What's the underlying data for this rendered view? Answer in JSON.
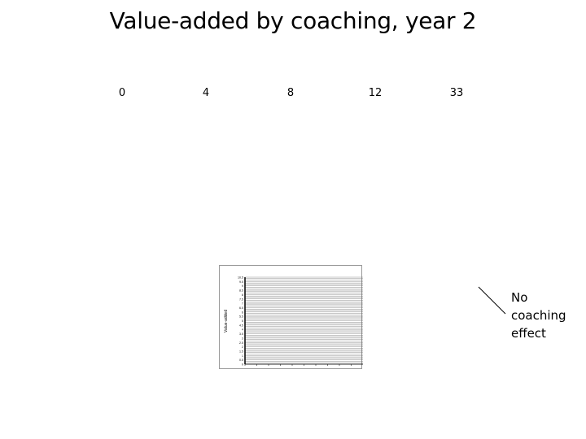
{
  "page": {
    "title": "Value-added by coaching, year 2"
  },
  "chart_data": [
    {
      "type": "bar",
      "categories": [
        "0",
        "4",
        "8",
        "12",
        "33"
      ],
      "series": []
    },
    {
      "type": "bar",
      "ylabel": "Value-added",
      "y_tick_labels": [
        "10.5",
        "9.5",
        "9",
        "8.5",
        "8",
        "7.5",
        "7",
        "6.5",
        "6",
        "5.5",
        "5",
        "4.5",
        "4",
        "3.5",
        "3",
        "2.5",
        "2",
        "1.5",
        "1",
        "0.5",
        "0"
      ],
      "grid": true,
      "series": []
    }
  ],
  "annotation": {
    "lines": [
      "No",
      "coaching",
      "effect"
    ]
  }
}
